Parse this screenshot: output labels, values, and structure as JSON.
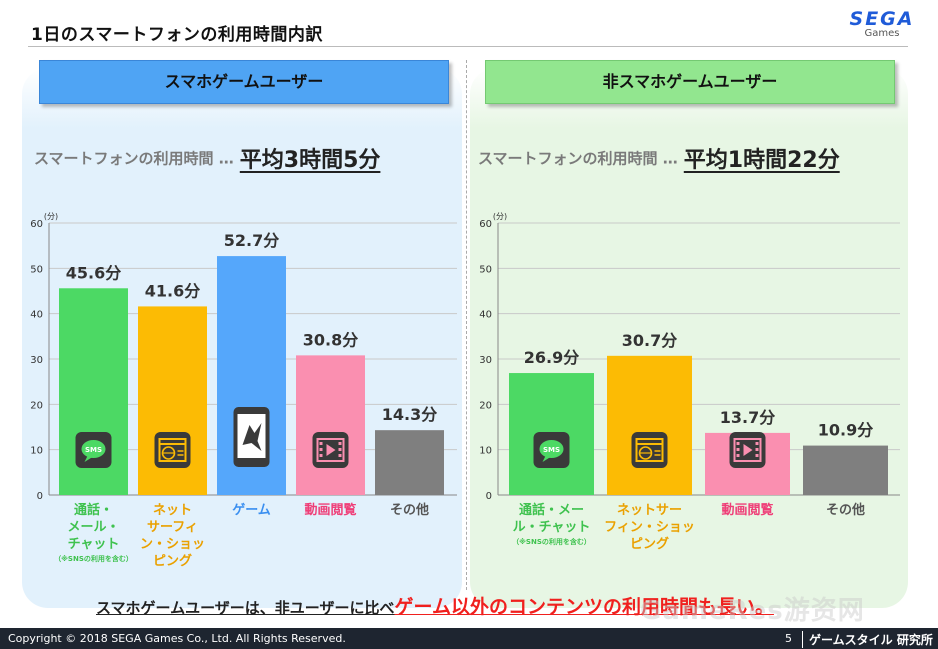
{
  "header": {
    "title": "1日のスマートフォンの利用時間内訳",
    "logo_main": "SEGA",
    "logo_sub": "Games"
  },
  "left_panel": {
    "heading": "スマホゲームユーザー",
    "usage_label": "スマートフォンの利用時間 …",
    "usage_value": "平均3時間5分"
  },
  "right_panel": {
    "heading": "非スマホゲームユーザー",
    "usage_label": "スマートフォンの利用時間 …",
    "usage_value": "平均1時間22分"
  },
  "chart_data": [
    {
      "type": "bar",
      "title": "",
      "ylabel": "(分)",
      "ylim": [
        0,
        60
      ],
      "yticks": [
        0,
        10,
        20,
        30,
        40,
        50,
        60
      ],
      "grid": true,
      "categories": [
        "通話・メール・チャット",
        "ネットサーフィン・ショッピング",
        "ゲーム",
        "動画閲覧",
        "その他"
      ],
      "category_lines": [
        [
          "通話・",
          "メール・",
          "チャット"
        ],
        [
          "ネット",
          "サーフィ",
          "ン・ショッ",
          "ピング"
        ],
        [
          "ゲーム"
        ],
        [
          "動画閲覧"
        ],
        [
          "その他"
        ]
      ],
      "category_notes": [
        "（※SNSの利用を含む）",
        "",
        "",
        "",
        ""
      ],
      "values": [
        45.6,
        41.6,
        52.7,
        30.8,
        14.3
      ],
      "value_labels": [
        "45.6分",
        "41.6分",
        "52.7分",
        "30.8分",
        "14.3分"
      ],
      "colors": [
        "#4cd964",
        "#fcbb04",
        "#55a7fb",
        "#fa8fb0",
        "#7f7f7f"
      ],
      "label_colors": [
        "#3fc24f",
        "#eaa100",
        "#3a8ff0",
        "#ef3f78",
        "#555555"
      ],
      "icons": [
        "sms-icon",
        "web-icon",
        "game-icon",
        "video-icon",
        ""
      ]
    },
    {
      "type": "bar",
      "title": "",
      "ylabel": "(分)",
      "ylim": [
        0,
        60
      ],
      "yticks": [
        0,
        10,
        20,
        30,
        40,
        50,
        60
      ],
      "grid": true,
      "categories": [
        "通話・メール・チャット",
        "ネットサーフィン・ショッピング",
        "動画閲覧",
        "その他"
      ],
      "category_lines": [
        [
          "通話・メー",
          "ル・チャット"
        ],
        [
          "ネットサー",
          "フィン・ショッ",
          "ピング"
        ],
        [
          "動画閲覧"
        ],
        [
          "その他"
        ]
      ],
      "category_notes": [
        "（※SNSの利用を含む）",
        "",
        "",
        ""
      ],
      "values": [
        26.9,
        30.7,
        13.7,
        10.9
      ],
      "value_labels": [
        "26.9分",
        "30.7分",
        "13.7分",
        "10.9分"
      ],
      "colors": [
        "#4cd964",
        "#fcbb04",
        "#fa8fb0",
        "#7f7f7f"
      ],
      "label_colors": [
        "#3fc24f",
        "#eaa100",
        "#ef3f78",
        "#555555"
      ],
      "icons": [
        "sms-icon",
        "web-icon",
        "video-icon",
        ""
      ]
    }
  ],
  "tagline": {
    "part1": "スマホゲームユーザーは、非ユーザーに比べ",
    "part2": "ゲーム以外のコンテンツの利用時間も長い。"
  },
  "footer": {
    "copyright": "Copyright © 2018 SEGA Games Co., Ltd. All Rights Reserved.",
    "page": "5",
    "brand": "ゲームスタイル 研究所"
  },
  "watermark": "GameRes游资网"
}
